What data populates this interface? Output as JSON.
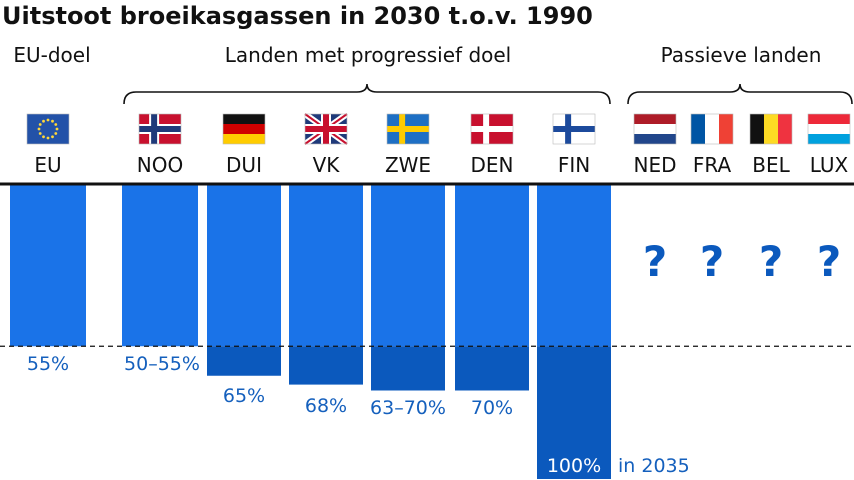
{
  "chart_data": {
    "type": "bar",
    "title": "Uitstoot broeikasgassen in 2030 t.o.v. 1990",
    "groups": [
      {
        "label": "EU-doel"
      },
      {
        "label": "Landen met progressief doel"
      },
      {
        "label": "Passieve landen"
      }
    ],
    "categories": [
      "EU",
      "NOO",
      "DUI",
      "VK",
      "ZWE",
      "DEN",
      "FIN",
      "NED",
      "FRA",
      "BEL",
      "LUX"
    ],
    "values": [
      55,
      55,
      65,
      68,
      70,
      70,
      100,
      null,
      null,
      null,
      null
    ],
    "value_labels": [
      "55%",
      "50–55%",
      "65%",
      "68%",
      "63–70%",
      "70%",
      "100%",
      "?",
      "?",
      "?",
      "?"
    ],
    "annotations": [
      {
        "category": "FIN",
        "text": "in 2035"
      }
    ],
    "reference_line": {
      "value": 55,
      "style": "dashed"
    },
    "colors": {
      "bar": "#1a73e8",
      "bar_beyond": "#0b59bd",
      "label": "#1560bd",
      "unknown": "#0b59bd",
      "text": "#111111"
    },
    "flags": [
      "eu-flag-icon",
      "norway-flag-icon",
      "germany-flag-icon",
      "uk-flag-icon",
      "sweden-flag-icon",
      "denmark-flag-icon",
      "finland-flag-icon",
      "netherlands-flag-icon",
      "france-flag-icon",
      "belgium-flag-icon",
      "luxembourg-flag-icon"
    ]
  }
}
